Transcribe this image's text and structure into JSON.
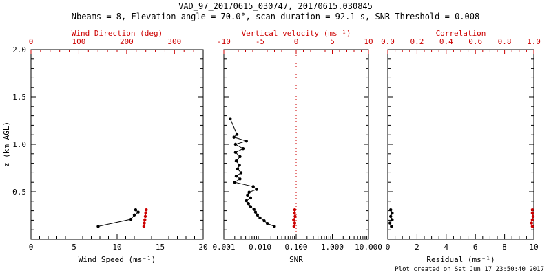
{
  "header": {
    "title": "VAD_97_20170615_030747, 20170615.030845",
    "subtitle": "Nbeams = 8, Elevation angle = 70.0°, scan duration = 92.1 s, SNR Threshold = 0.008"
  },
  "footer": {
    "created_text": "Plot created on Sat Jun 17 23:50:40 2017"
  },
  "colors": {
    "primary": "#000000",
    "secondary": "#cc0000",
    "background": "#ffffff"
  },
  "chart_data": [
    {
      "name": "wind-panel",
      "type": "line",
      "ylabel": "z (km AGL)",
      "ylim": [
        0.0,
        2.0
      ],
      "yticks": [
        0.0,
        0.5,
        1.0,
        1.5,
        2.0
      ],
      "ytick_labels": [
        "",
        "0.5",
        "1.0",
        "1.5",
        "2.0"
      ],
      "show_ytick_labels": true,
      "bottom_axis": {
        "label": "Wind Speed (ms⁻¹)",
        "lim": [
          0,
          20
        ],
        "ticks": [
          0,
          5,
          10,
          15,
          20
        ],
        "tick_labels": [
          "0",
          "5",
          "10",
          "15",
          "20"
        ],
        "color": "#000000",
        "minor_div": 5
      },
      "top_axis": {
        "label": "Wind Direction (deg)",
        "lim": [
          0,
          360
        ],
        "ticks": [
          0,
          100,
          200,
          300
        ],
        "tick_labels": [
          "0",
          "100",
          "200",
          "300"
        ],
        "color": "#cc0000",
        "minor_div": 5
      },
      "series": [
        {
          "name": "wind_speed",
          "axis": "bottom",
          "color": "#000000",
          "line": true,
          "marker": true,
          "points": [
            [
              7.8,
              0.135
            ],
            [
              11.6,
              0.21
            ],
            [
              12.0,
              0.255
            ],
            [
              12.45,
              0.285
            ],
            [
              12.15,
              0.31
            ]
          ]
        },
        {
          "name": "wind_direction",
          "axis": "top",
          "color": "#cc0000",
          "line": true,
          "marker": true,
          "points": [
            [
              236,
              0.135
            ],
            [
              237,
              0.17
            ],
            [
              238,
              0.205
            ],
            [
              239,
              0.24
            ],
            [
              240,
              0.275
            ],
            [
              241,
              0.31
            ]
          ]
        }
      ]
    },
    {
      "name": "snr-panel",
      "type": "line",
      "ylabel": "",
      "ylim": [
        0.0,
        2.0
      ],
      "yticks": [
        0.0,
        0.5,
        1.0,
        1.5,
        2.0
      ],
      "ytick_labels": [
        "",
        "0.5",
        "1.0",
        "1.5",
        "2.0"
      ],
      "show_ytick_labels": false,
      "bottom_axis": {
        "label": "SNR",
        "lim": [
          0.001,
          10.0
        ],
        "scale": "log",
        "ticks": [
          0.001,
          0.01,
          0.1,
          1.0,
          10.0
        ],
        "tick_labels": [
          "0.001",
          "0.010",
          "0.100",
          "1.000",
          "10.000"
        ],
        "color": "#000000"
      },
      "top_axis": {
        "label": "Vertical velocity (ms⁻¹)",
        "lim": [
          -10,
          10
        ],
        "ticks": [
          -10,
          -5,
          0,
          5,
          10
        ],
        "tick_labels": [
          "-10",
          "-5",
          "0",
          "5",
          "10"
        ],
        "color": "#cc0000",
        "minor_div": 5
      },
      "refline": {
        "axis": "top",
        "value": 0,
        "color": "#cc0000",
        "style": "dotted"
      },
      "series": [
        {
          "name": "snr",
          "axis": "bottom",
          "color": "#000000",
          "line": true,
          "marker": true,
          "points": [
            [
              0.025,
              0.135
            ],
            [
              0.016,
              0.165
            ],
            [
              0.013,
              0.195
            ],
            [
              0.01,
              0.225
            ],
            [
              0.0085,
              0.255
            ],
            [
              0.0075,
              0.285
            ],
            [
              0.0068,
              0.315
            ],
            [
              0.0055,
              0.345
            ],
            [
              0.0048,
              0.375
            ],
            [
              0.0042,
              0.405
            ],
            [
              0.0055,
              0.435
            ],
            [
              0.0045,
              0.465
            ],
            [
              0.005,
              0.495
            ],
            [
              0.008,
              0.525
            ],
            [
              0.0065,
              0.555
            ],
            [
              0.002,
              0.6
            ],
            [
              0.0028,
              0.635
            ],
            [
              0.0022,
              0.665
            ],
            [
              0.003,
              0.7
            ],
            [
              0.0024,
              0.74
            ],
            [
              0.0027,
              0.78
            ],
            [
              0.0022,
              0.825
            ],
            [
              0.0028,
              0.87
            ],
            [
              0.0021,
              0.915
            ],
            [
              0.0034,
              0.955
            ],
            [
              0.0021,
              1.0
            ],
            [
              0.0042,
              1.035
            ],
            [
              0.0019,
              1.075
            ],
            [
              0.0023,
              1.105
            ],
            [
              0.0015,
              1.27
            ]
          ]
        },
        {
          "name": "vertical_velocity",
          "axis": "top",
          "color": "#cc0000",
          "line": true,
          "marker": true,
          "points": [
            [
              -0.3,
              0.135
            ],
            [
              -0.2,
              0.17
            ],
            [
              -0.35,
              0.205
            ],
            [
              -0.15,
              0.24
            ],
            [
              -0.25,
              0.275
            ],
            [
              -0.2,
              0.31
            ]
          ]
        }
      ]
    },
    {
      "name": "residual-panel",
      "type": "line",
      "ylabel": "",
      "ylim": [
        0.0,
        2.0
      ],
      "yticks": [
        0.0,
        0.5,
        1.0,
        1.5,
        2.0
      ],
      "ytick_labels": [
        "",
        "0.5",
        "1.0",
        "1.5",
        "2.0"
      ],
      "show_ytick_labels": false,
      "bottom_axis": {
        "label": "Residual (ms⁻¹)",
        "lim": [
          0,
          10
        ],
        "ticks": [
          0,
          2,
          4,
          6,
          8,
          10
        ],
        "tick_labels": [
          "0",
          "2",
          "4",
          "6",
          "8",
          "10"
        ],
        "color": "#000000",
        "minor_div": 4
      },
      "top_axis": {
        "label": "Correlation",
        "lim": [
          0.0,
          1.0
        ],
        "ticks": [
          0.0,
          0.2,
          0.4,
          0.6,
          0.8,
          1.0
        ],
        "tick_labels": [
          "0.0",
          "0.2",
          "0.4",
          "0.6",
          "0.8",
          "1.0"
        ],
        "color": "#cc0000",
        "minor_div": 4
      },
      "series": [
        {
          "name": "residual",
          "axis": "bottom",
          "color": "#000000",
          "line": true,
          "marker": true,
          "points": [
            [
              0.25,
              0.135
            ],
            [
              0.15,
              0.17
            ],
            [
              0.3,
              0.205
            ],
            [
              0.2,
              0.24
            ],
            [
              0.3,
              0.275
            ],
            [
              0.2,
              0.31
            ]
          ]
        },
        {
          "name": "correlation",
          "axis": "top",
          "color": "#cc0000",
          "line": true,
          "marker": true,
          "points": [
            [
              0.99,
              0.135
            ],
            [
              0.985,
              0.17
            ],
            [
              0.99,
              0.205
            ],
            [
              0.995,
              0.24
            ],
            [
              0.99,
              0.275
            ],
            [
              0.99,
              0.31
            ]
          ]
        }
      ]
    }
  ]
}
